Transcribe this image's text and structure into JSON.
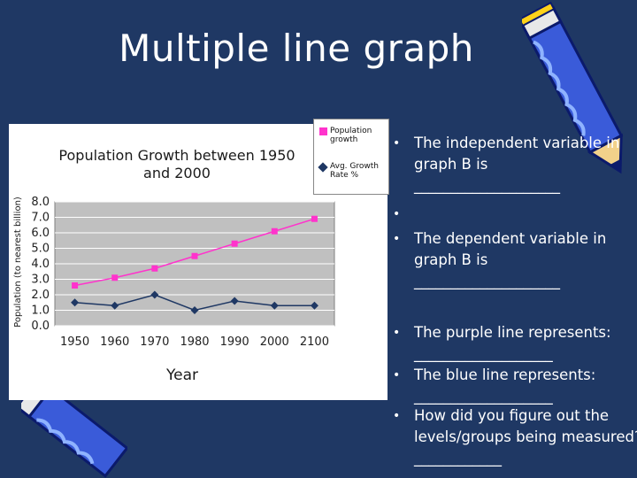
{
  "slide": {
    "title": "Multiple line graph"
  },
  "chart_data": {
    "type": "line",
    "title_line1": "Population Growth between 1950",
    "title_line2": "and 2000",
    "xlabel": "Year",
    "ylabel": "Population (to nearest billion)",
    "categories": [
      "1950",
      "1960",
      "1970",
      "1980",
      "1990",
      "2000",
      "2100"
    ],
    "ylim": [
      0,
      8
    ],
    "yticks": [
      "0.0",
      "1.0",
      "2.0",
      "3.0",
      "4.0",
      "5.0",
      "6.0",
      "7.0",
      "8.0"
    ],
    "grid": true,
    "series": [
      {
        "name": "Population growth",
        "values": [
          2.6,
          3.1,
          3.7,
          4.5,
          5.3,
          6.1,
          6.9
        ],
        "color": "#ff33cc",
        "marker": "square"
      },
      {
        "name": "Avg. Growth Rate %",
        "values": [
          1.5,
          1.3,
          2.0,
          1.0,
          1.6,
          1.3,
          1.3
        ],
        "color": "#1f3864",
        "marker": "diamond"
      }
    ],
    "legend": "top-right"
  },
  "legend": {
    "item1": "Population growth",
    "item2": "Avg. Growth Rate %"
  },
  "bullets": [
    {
      "bullet": "•",
      "text": "The independent variable in\ngraph B is\n____________________"
    },
    {
      "bullet": "•",
      "text": ""
    },
    {
      "bullet": "•",
      "text": "The dependent variable in\ngraph B is\n____________________"
    },
    {
      "bullet": "•",
      "text": "The purple line represents:\n___________________"
    },
    {
      "bullet": "•",
      "text": "The blue line represents:\n___________________"
    },
    {
      "bullet": "•",
      "text": "How did you figure out the\nlevels/groups being measured?\n____________"
    }
  ],
  "colors": {
    "background": "#1f3864",
    "pink_series": "#ff33cc",
    "navy_series": "#1f3864",
    "plot_area": "#c0c0c0"
  }
}
